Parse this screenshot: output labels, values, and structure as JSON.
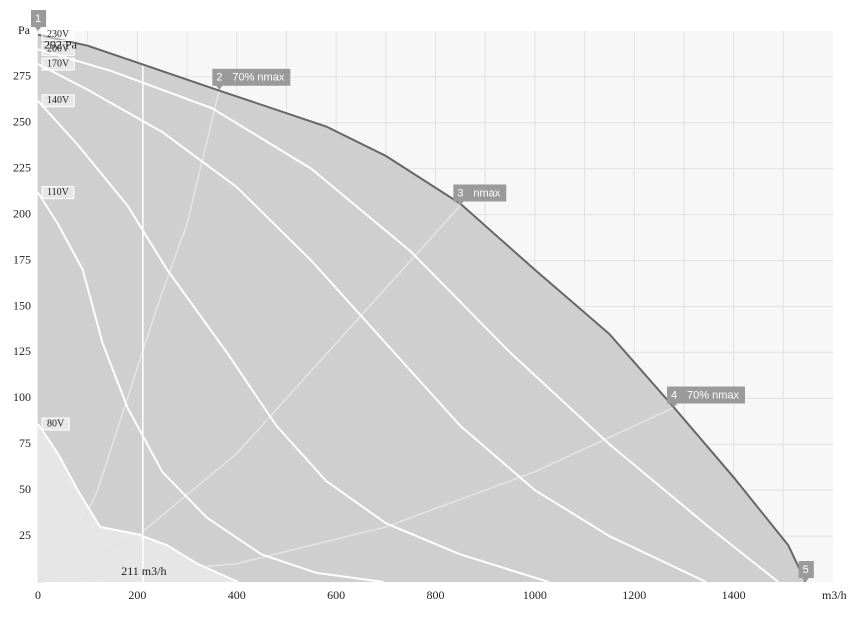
{
  "chart_data": {
    "type": "line",
    "y_label": "Pa",
    "x_label": "m3/h",
    "xlim": [
      0,
      1600
    ],
    "ylim": [
      0,
      300
    ],
    "xticks": [
      0,
      200,
      400,
      600,
      800,
      1000,
      1200,
      1400
    ],
    "xminor": [
      100,
      300,
      500,
      700,
      900,
      1100,
      1300,
      1500
    ],
    "yticks": [
      25,
      50,
      75,
      100,
      125,
      150,
      175,
      200,
      225,
      250,
      275
    ],
    "grid": true,
    "series": [
      {
        "name": "230V",
        "color": "#666666",
        "envelope": true,
        "x": [
          0,
          100,
          360,
          580,
          700,
          850,
          1000,
          1150,
          1280,
          1400,
          1510,
          1545
        ],
        "values": [
          298,
          292,
          268,
          248,
          232,
          206,
          170,
          135,
          95,
          57,
          20,
          0
        ]
      },
      {
        "name": "200V",
        "color": "#ffffff",
        "x": [
          0,
          150,
          350,
          550,
          750,
          950,
          1150,
          1350,
          1490
        ],
        "values": [
          290,
          278,
          258,
          225,
          180,
          125,
          75,
          30,
          0
        ]
      },
      {
        "name": "170V",
        "color": "#ffffff",
        "x": [
          0,
          100,
          250,
          400,
          550,
          700,
          850,
          1000,
          1150,
          1345
        ],
        "values": [
          282,
          268,
          245,
          215,
          175,
          130,
          85,
          50,
          25,
          0
        ]
      },
      {
        "name": "140V",
        "color": "#ffffff",
        "x": [
          0,
          80,
          180,
          260,
          380,
          480,
          580,
          700,
          850,
          1028
        ],
        "values": [
          262,
          238,
          205,
          170,
          125,
          85,
          55,
          32,
          15,
          0
        ]
      },
      {
        "name": "110V",
        "color": "#ffffff",
        "x": [
          0,
          40,
          90,
          130,
          180,
          250,
          340,
          450,
          560,
          695
        ],
        "values": [
          212,
          195,
          170,
          130,
          95,
          60,
          35,
          15,
          5,
          0
        ]
      },
      {
        "name": "80V",
        "color": "#ffffff",
        "fill": "#e6e6e6",
        "x": [
          0,
          40,
          80,
          125,
          200,
          260,
          320,
          403
        ],
        "values": [
          86,
          70,
          50,
          30,
          26,
          20,
          10,
          0
        ]
      }
    ],
    "system_curves": [
      {
        "color": "#e4e4e4",
        "x": [
          0,
          60,
          120,
          180,
          240,
          300,
          365
        ],
        "values": [
          0,
          15,
          50,
          100,
          150,
          195,
          268
        ]
      },
      {
        "color": "#e4e4e4",
        "x": [
          0,
          200,
          400,
          600,
          750,
          850
        ],
        "values": [
          0,
          25,
          70,
          130,
          175,
          205
        ]
      },
      {
        "color": "#e4e4e4",
        "x": [
          0,
          400,
          700,
          1000,
          1280
        ],
        "values": [
          0,
          10,
          30,
          60,
          95
        ]
      }
    ],
    "points": [
      {
        "id": "1",
        "x": 0,
        "y": 300
      },
      {
        "id": "2",
        "label": "70% nmax",
        "x": 365,
        "y": 268
      },
      {
        "id": "3",
        "label": "nmax",
        "x": 850,
        "y": 205
      },
      {
        "id": "4",
        "label": "70% nmax",
        "x": 1280,
        "y": 95
      },
      {
        "id": "5",
        "x": 1545,
        "y": 0
      }
    ],
    "annotations": [
      {
        "text": "292 Pa",
        "y": 292
      },
      {
        "text": "211 m3/h",
        "x": 211,
        "y": 281
      }
    ]
  }
}
